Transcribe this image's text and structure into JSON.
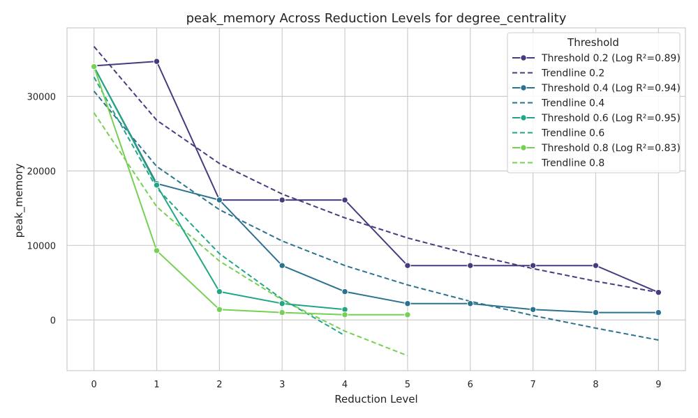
{
  "chart_data": {
    "type": "line",
    "title": "peak_memory Across Reduction Levels for degree_centrality",
    "xlabel": "Reduction Level",
    "ylabel": "peak_memory",
    "xlim": [
      -0.43,
      9.43
    ],
    "ylim": [
      -6800,
      39200
    ],
    "xticks": [
      0,
      1,
      2,
      3,
      4,
      5,
      6,
      7,
      8,
      9
    ],
    "yticks": [
      0,
      10000,
      20000,
      30000
    ],
    "grid": true,
    "legend": {
      "title": "Threshold",
      "placement": "top-right"
    },
    "series": [
      {
        "name": "Threshold 0.2 (Log R²=0.89)",
        "kind": "data",
        "color": "#433d80",
        "x": [
          0,
          1,
          2,
          3,
          4,
          5,
          6,
          7,
          8,
          9
        ],
        "y": [
          34100,
          34700,
          16100,
          16100,
          16100,
          7300,
          7300,
          7300,
          7300,
          3700
        ]
      },
      {
        "name": "Trendline 0.2",
        "kind": "trend",
        "color": "#433d80",
        "x": [
          0,
          1,
          2,
          3,
          4,
          5,
          6,
          7,
          8,
          9
        ],
        "y": [
          36700,
          26800,
          21000,
          16900,
          13700,
          11000,
          8800,
          6900,
          5200,
          3700
        ]
      },
      {
        "name": "Threshold 0.4 (Log R²=0.94)",
        "kind": "data",
        "color": "#2b728e",
        "x": [
          0,
          1,
          2,
          3,
          4,
          5,
          6,
          7,
          8,
          9
        ],
        "y": [
          34000,
          18300,
          16100,
          7300,
          3800,
          2200,
          2200,
          1400,
          1000,
          1000
        ]
      },
      {
        "name": "Trendline 0.4",
        "kind": "trend",
        "color": "#2b728e",
        "x": [
          0,
          1,
          2,
          3,
          4,
          5,
          6,
          7,
          8,
          9
        ],
        "y": [
          30700,
          20600,
          14800,
          10600,
          7300,
          4700,
          2500,
          600,
          -1100,
          -2700
        ]
      },
      {
        "name": "Threshold 0.6 (Log R²=0.95)",
        "kind": "data",
        "color": "#21a685",
        "x": [
          0,
          1,
          2,
          3,
          4
        ],
        "y": [
          34000,
          18100,
          3800,
          2200,
          1400
        ]
      },
      {
        "name": "Trendline 0.6",
        "kind": "trend",
        "color": "#21a685",
        "x": [
          0,
          1,
          2,
          3,
          4
        ],
        "y": [
          32600,
          17700,
          8900,
          2800,
          -2100
        ]
      },
      {
        "name": "Threshold 0.8 (Log R²=0.83)",
        "kind": "data",
        "color": "#75d054",
        "x": [
          0,
          1,
          2,
          3,
          4,
          5
        ],
        "y": [
          34000,
          9300,
          1400,
          1000,
          700,
          700
        ]
      },
      {
        "name": "Trendline 0.8",
        "kind": "trend",
        "color": "#75d054",
        "x": [
          0,
          1,
          2,
          3,
          4,
          5
        ],
        "y": [
          27800,
          15200,
          7900,
          2700,
          -1500,
          -4800
        ]
      }
    ]
  }
}
